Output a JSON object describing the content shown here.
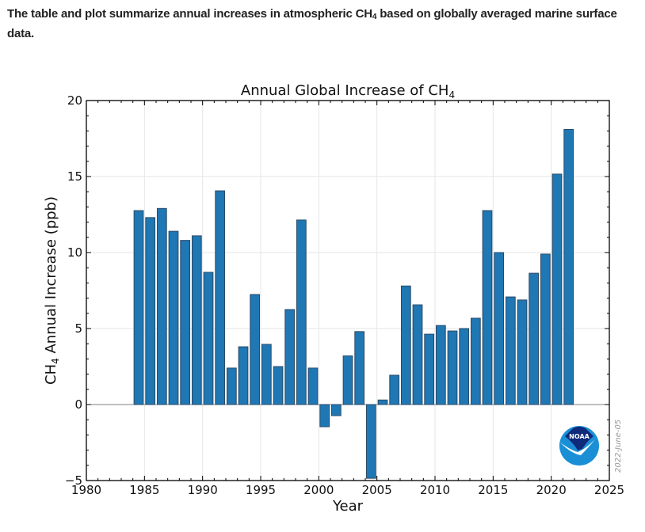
{
  "intro": {
    "text_before": "The table and plot summarize annual increases in atmospheric CH",
    "subscript": "4",
    "text_after": " based on globally averaged marine surface data."
  },
  "logo": {
    "label": "NOAA",
    "name": "noaa-logo"
  },
  "stamp": "2022-June-05",
  "colors": {
    "bar_fill": "#1f77b4",
    "bar_edge": "#2b4a66",
    "grid": "#e6e6e6",
    "zero_line": "#808080"
  },
  "chart_data": {
    "type": "bar",
    "title": "Annual Global Increase of CH",
    "title_subscript": "4",
    "xlabel": "Year",
    "ylabel_prefix": "CH",
    "ylabel_subscript": "4",
    "ylabel_suffix": " Annual Increase (ppb)",
    "xlim": [
      1980,
      2025
    ],
    "ylim": [
      -5,
      20
    ],
    "xticks": [
      1980,
      1985,
      1990,
      1995,
      2000,
      2005,
      2010,
      2015,
      2020,
      2025
    ],
    "yticks": [
      -5,
      0,
      5,
      10,
      15,
      20
    ],
    "grid": true,
    "legend": "none",
    "categories": [
      1984,
      1985,
      1986,
      1987,
      1988,
      1989,
      1990,
      1991,
      1992,
      1993,
      1994,
      1995,
      1996,
      1997,
      1998,
      1999,
      2000,
      2001,
      2002,
      2003,
      2004,
      2005,
      2006,
      2007,
      2008,
      2009,
      2010,
      2011,
      2012,
      2013,
      2014,
      2015,
      2016,
      2017,
      2018,
      2019,
      2020,
      2021
    ],
    "values": [
      12.76,
      12.3,
      12.9,
      11.4,
      10.8,
      11.1,
      8.7,
      14.06,
      2.4,
      3.8,
      7.24,
      3.96,
      2.5,
      6.25,
      12.14,
      2.4,
      -1.46,
      -0.73,
      3.2,
      4.8,
      -4.85,
      0.3,
      1.93,
      7.8,
      6.56,
      4.63,
      5.2,
      4.84,
      5.0,
      5.68,
      12.76,
      10.0,
      7.08,
      6.88,
      8.64,
      9.9,
      15.16,
      18.1
    ]
  }
}
